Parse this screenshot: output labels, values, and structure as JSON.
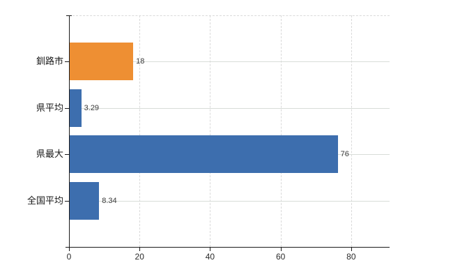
{
  "chart_data": {
    "type": "bar",
    "orientation": "horizontal",
    "title": "",
    "xlabel": "",
    "ylabel": "",
    "categories": [
      "釧路市",
      "県平均",
      "県最大",
      "全国平均"
    ],
    "values": [
      18,
      3.29,
      76,
      8.34
    ],
    "value_labels": [
      "18",
      "3.29",
      "76",
      "8.34"
    ],
    "bar_colors": [
      "#ee8f33",
      "#3d6eae",
      "#3d6eae",
      "#3d6eae"
    ],
    "x_ticks": [
      0,
      20,
      40,
      60,
      80
    ],
    "x_tick_labels": [
      "0",
      "20",
      "40",
      "60",
      "80"
    ],
    "xlim": [
      0,
      90.9
    ],
    "grid": true,
    "legend": "none"
  },
  "colors": {
    "bar_blue": "#3d6eae",
    "bar_orange": "#ee8f33",
    "grid_dashed": "#d9d9d9",
    "grid_solid": "#d8ddd8",
    "axis": "#1a1a1a",
    "text": "#2b2b2b",
    "background": "#ffffff"
  }
}
